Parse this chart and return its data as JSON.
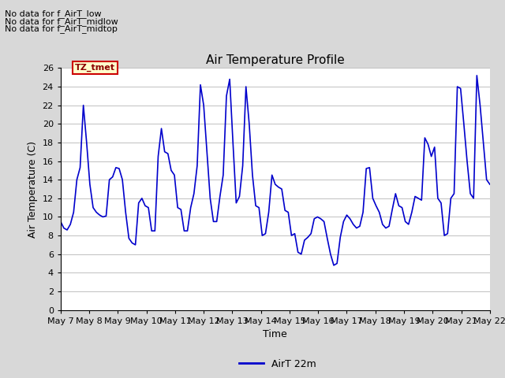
{
  "title": "Air Temperature Profile",
  "xlabel": "Time",
  "ylabel": "Air Temperature (C)",
  "ylim": [
    0,
    26
  ],
  "yticks": [
    0,
    2,
    4,
    6,
    8,
    10,
    12,
    14,
    16,
    18,
    20,
    22,
    24,
    26
  ],
  "line_color": "#0000cc",
  "line_width": 1.2,
  "legend_label": "AirT 22m",
  "annotations": [
    "No data for f_AirT_low",
    "No data for f_AirT_midlow",
    "No data for f_AirT_midtop"
  ],
  "tz_label": "TZ_tmet",
  "x_tick_labels": [
    "May 7",
    "May 8",
    "May 9",
    "May 10",
    "May 11",
    "May 12",
    "May 13",
    "May 14",
    "May 15",
    "May 16",
    "May 17",
    "May 18",
    "May 19",
    "May 20",
    "May 21",
    "May 22"
  ],
  "bg_color": "#d8d8d8",
  "plot_bg_color": "#ffffff",
  "temperature_data": [
    9.5,
    8.8,
    8.6,
    9.2,
    10.5,
    14.0,
    15.3,
    22.0,
    18.0,
    13.5,
    11.0,
    10.5,
    10.2,
    10.0,
    10.1,
    14.0,
    14.3,
    15.3,
    15.2,
    14.0,
    10.5,
    7.7,
    7.2,
    7.0,
    11.5,
    12.0,
    11.2,
    11.0,
    8.5,
    8.5,
    16.5,
    19.5,
    17.0,
    16.8,
    15.0,
    14.5,
    11.0,
    10.8,
    8.5,
    8.5,
    11.0,
    12.5,
    15.5,
    24.2,
    22.0,
    17.0,
    12.0,
    9.5,
    9.5,
    12.2,
    14.5,
    23.0,
    24.8,
    18.0,
    11.5,
    12.2,
    15.5,
    24.0,
    20.0,
    14.5,
    11.2,
    11.0,
    8.0,
    8.2,
    10.5,
    14.5,
    13.5,
    13.2,
    13.0,
    10.7,
    10.5,
    8.0,
    8.2,
    6.2,
    6.0,
    7.5,
    7.8,
    8.2,
    9.8,
    10.0,
    9.8,
    9.5,
    7.7,
    6.0,
    4.8,
    5.0,
    7.8,
    9.5,
    10.2,
    9.8,
    9.2,
    8.8,
    9.0,
    10.5,
    15.2,
    15.3,
    12.0,
    11.2,
    10.5,
    9.2,
    8.8,
    9.0,
    10.8,
    12.5,
    11.2,
    11.0,
    9.5,
    9.2,
    10.5,
    12.2,
    12.0,
    11.8,
    18.5,
    17.8,
    16.5,
    17.5,
    12.0,
    11.5,
    8.0,
    8.2,
    12.0,
    12.5,
    24.0,
    23.8,
    20.0,
    16.0,
    12.5,
    12.0,
    25.2,
    22.0,
    18.0,
    14.0,
    13.5
  ]
}
